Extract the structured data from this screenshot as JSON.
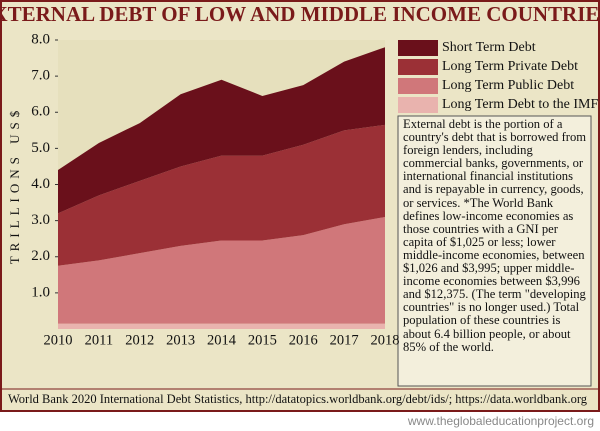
{
  "chart_data": {
    "type": "area",
    "title": "EXTERNAL DEBT OF LOW AND MIDDLE INCOME COUNTRIES*",
    "y_label": "TRILLIONS US$",
    "x": [
      2010,
      2011,
      2012,
      2013,
      2014,
      2015,
      2016,
      2017,
      2018
    ],
    "xlim": [
      2010,
      2018
    ],
    "xticks": [
      2010,
      2011,
      2012,
      2013,
      2014,
      2015,
      2016,
      2017,
      2018
    ],
    "ylim": [
      0,
      8
    ],
    "yticks": [
      {
        "value": 1,
        "label": "1.0"
      },
      {
        "value": 2,
        "label": "2.0"
      },
      {
        "value": 3,
        "label": "3.0"
      },
      {
        "value": 4,
        "label": "4.0"
      },
      {
        "value": 5,
        "label": "5.0"
      },
      {
        "value": 6,
        "label": "6.0"
      },
      {
        "value": 7,
        "label": "7.0"
      },
      {
        "value": 8,
        "label": "8.0"
      }
    ],
    "stacked": true,
    "series": [
      {
        "name": "Long Term Debt to the IMF",
        "color": "#e9b3ae",
        "values": [
          0.15,
          0.15,
          0.15,
          0.15,
          0.15,
          0.15,
          0.15,
          0.15,
          0.15
        ]
      },
      {
        "name": "Long Term Public Debt",
        "color": "#d0777a",
        "values": [
          1.6,
          1.75,
          1.95,
          2.15,
          2.3,
          2.3,
          2.45,
          2.75,
          2.95
        ]
      },
      {
        "name": "Long Term Private Debt",
        "color": "#9b3036",
        "values": [
          1.45,
          1.8,
          2.0,
          2.2,
          2.35,
          2.35,
          2.5,
          2.6,
          2.55
        ]
      },
      {
        "name": "Short Term Debt",
        "color": "#6a101b",
        "values": [
          1.2,
          1.45,
          1.6,
          2.0,
          2.1,
          1.65,
          1.65,
          1.9,
          2.15
        ]
      }
    ],
    "note": "External debt is the portion of a country's debt that is borrowed from foreign lenders, including commercial banks, governments, or international financial institutions and is repayable in currency, goods, or services. *The World Bank defines low-income economies as those countries with a GNI per capita of $1,025 or less; lower middle-income economies, between $1,026 and $3,995; upper middle-income economies between $3,996 and $12,375. (The term \"developing countries\" is no longer used.) Total population of these countries is about 6.4 billion people, or about 85% of the world.",
    "source": "World Bank 2020 International Debt Statistics, http://datatopics.worldbank.org/debt/ids/; https://data.worldbank.org",
    "website": "www.theglobaleducationproject.org"
  }
}
